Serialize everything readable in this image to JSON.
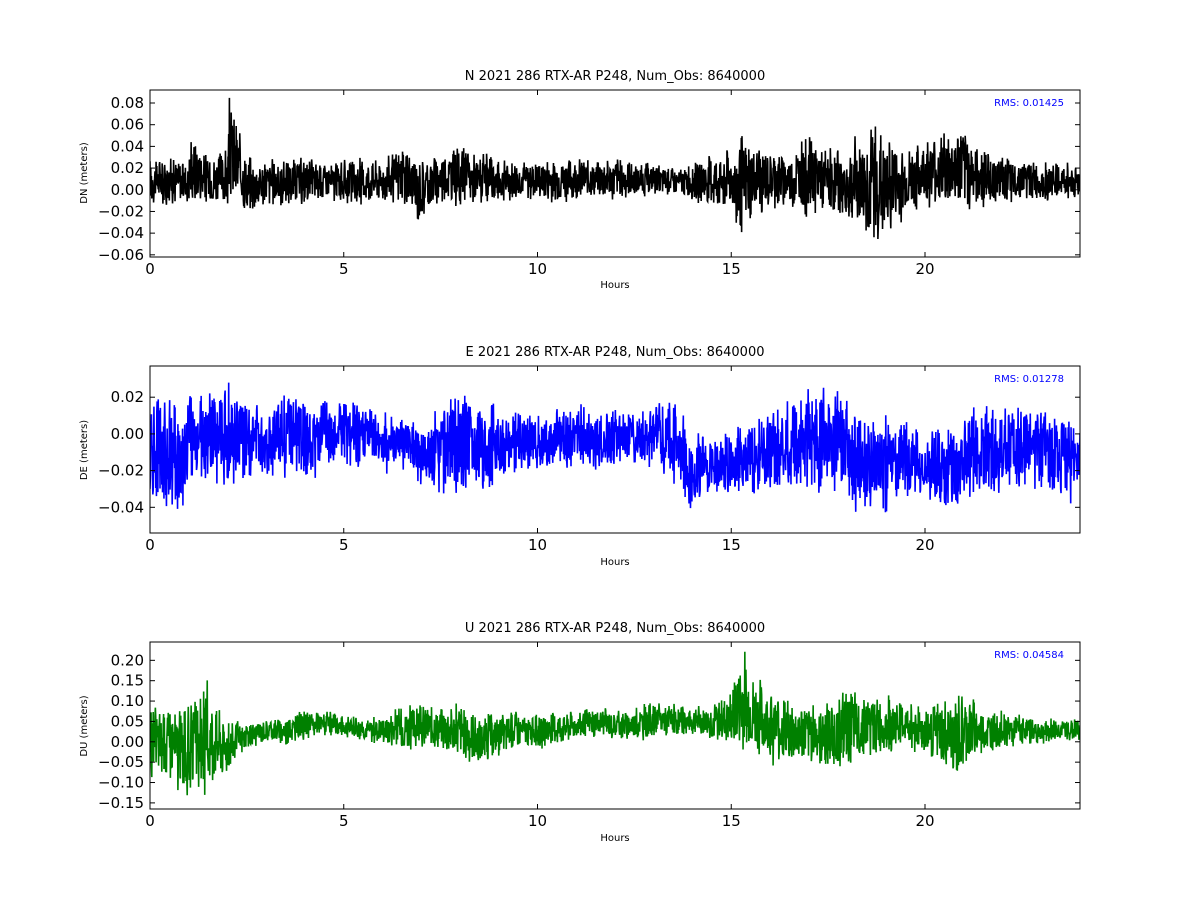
{
  "chart_data": [
    {
      "type": "line",
      "title": "N 2021 286 RTX-AR  P248, Num_Obs: 8640000",
      "xlabel": "Hours",
      "ylabel": "DN (meters)",
      "xlim": [
        0,
        24
      ],
      "ylim": [
        -0.062,
        0.092
      ],
      "xticks": [
        0,
        5,
        10,
        15,
        20
      ],
      "xtick_labels": [
        "0",
        "5",
        "10",
        "15",
        "20"
      ],
      "yticks": [
        -0.06,
        -0.04,
        -0.02,
        0.0,
        0.02,
        0.04,
        0.06,
        0.08
      ],
      "ytick_labels": [
        "−0.06",
        "−0.04",
        "−0.02",
        "0.00",
        "0.02",
        "0.04",
        "0.06",
        "0.08"
      ],
      "annotation": "RMS:  0.01425",
      "annotation_color": "#0000ff",
      "line_color": "#000000",
      "grid": false,
      "series": [
        {
          "x": [
            0,
            0.5,
            1,
            1.05,
            1.5,
            2,
            2.05,
            2.5,
            3,
            3.5,
            4,
            4.5,
            5,
            5.5,
            6,
            6.5,
            6.9,
            7.5,
            8,
            8.5,
            9,
            9.5,
            10,
            10.5,
            11,
            11.5,
            12,
            12.5,
            13,
            13.5,
            14,
            14.5,
            15,
            15.25,
            15.5,
            16,
            16.5,
            17,
            17.5,
            18,
            18.5,
            18.75,
            19,
            19.5,
            20,
            20.5,
            21,
            21.5,
            22,
            22.5,
            23,
            23.5,
            24
          ],
          "upper": [
            0.032,
            0.034,
            0.03,
            0.058,
            0.036,
            0.04,
            0.09,
            0.035,
            0.032,
            0.03,
            0.032,
            0.03,
            0.028,
            0.032,
            0.03,
            0.044,
            0.032,
            0.038,
            0.044,
            0.036,
            0.03,
            0.03,
            0.03,
            0.032,
            0.032,
            0.03,
            0.032,
            0.028,
            0.024,
            0.02,
            0.028,
            0.034,
            0.04,
            0.054,
            0.048,
            0.04,
            0.038,
            0.056,
            0.04,
            0.046,
            0.06,
            0.072,
            0.054,
            0.04,
            0.05,
            0.058,
            0.062,
            0.04,
            0.032,
            0.03,
            0.028,
            0.028,
            0.028
          ],
          "lower": [
            -0.014,
            -0.016,
            -0.014,
            -0.018,
            -0.018,
            -0.018,
            -0.02,
            -0.026,
            -0.018,
            -0.016,
            -0.016,
            -0.014,
            -0.014,
            -0.016,
            -0.012,
            -0.018,
            -0.034,
            -0.014,
            -0.016,
            -0.018,
            -0.014,
            -0.01,
            -0.012,
            -0.012,
            -0.012,
            -0.01,
            -0.012,
            -0.01,
            -0.006,
            -0.006,
            -0.012,
            -0.018,
            -0.022,
            -0.056,
            -0.03,
            -0.02,
            -0.02,
            -0.028,
            -0.024,
            -0.036,
            -0.05,
            -0.062,
            -0.05,
            -0.028,
            -0.018,
            -0.024,
            -0.024,
            -0.018,
            -0.014,
            -0.012,
            -0.012,
            -0.012,
            -0.012
          ]
        }
      ]
    },
    {
      "type": "line",
      "title": "E 2021 286 RTX-AR  P248, Num_Obs: 8640000",
      "xlabel": "Hours",
      "ylabel": "DE (meters)",
      "xlim": [
        0,
        24
      ],
      "ylim": [
        -0.054,
        0.037
      ],
      "xticks": [
        0,
        5,
        10,
        15,
        20
      ],
      "xtick_labels": [
        "0",
        "5",
        "10",
        "15",
        "20"
      ],
      "yticks": [
        -0.04,
        -0.02,
        0.0,
        0.02
      ],
      "ytick_labels": [
        "−0.04",
        "−0.02",
        "0.00",
        "0.02"
      ],
      "annotation": "RMS:  0.01278",
      "annotation_color": "#0000ff",
      "line_color": "#0000ff",
      "grid": false,
      "series": [
        {
          "x": [
            0,
            0.5,
            0.6,
            1,
            1.5,
            2,
            2.5,
            3,
            3.5,
            4,
            4.5,
            5,
            5.5,
            6,
            6.5,
            7,
            7.5,
            8,
            8.5,
            9,
            9.5,
            10,
            10.5,
            11,
            11.5,
            12,
            12.5,
            13,
            13.5,
            14,
            14.5,
            15,
            15.5,
            16,
            16.5,
            17,
            17.2,
            17.5,
            18,
            18.5,
            19,
            19.5,
            20,
            20.5,
            20.8,
            21,
            21.5,
            22,
            22.5,
            23,
            23.5,
            24
          ],
          "upper": [
            0.022,
            0.024,
            0.02,
            0.028,
            0.024,
            0.032,
            0.02,
            0.018,
            0.026,
            0.022,
            0.02,
            0.022,
            0.018,
            0.014,
            0.012,
            0.006,
            0.018,
            0.03,
            0.02,
            0.018,
            0.014,
            0.012,
            0.014,
            0.018,
            0.014,
            0.016,
            0.014,
            0.018,
            0.022,
            0.002,
            0.002,
            0.004,
            0.008,
            0.014,
            0.022,
            0.032,
            0.037,
            0.028,
            0.02,
            0.014,
            0.012,
            0.01,
            0.0,
            0.006,
            0.01,
            0.012,
            0.018,
            0.02,
            0.018,
            0.018,
            0.012,
            0.008
          ],
          "lower": [
            -0.044,
            -0.046,
            -0.054,
            -0.036,
            -0.03,
            -0.032,
            -0.026,
            -0.024,
            -0.026,
            -0.028,
            -0.024,
            -0.02,
            -0.02,
            -0.024,
            -0.02,
            -0.03,
            -0.04,
            -0.034,
            -0.036,
            -0.028,
            -0.024,
            -0.022,
            -0.022,
            -0.02,
            -0.022,
            -0.02,
            -0.02,
            -0.022,
            -0.03,
            -0.044,
            -0.036,
            -0.034,
            -0.036,
            -0.034,
            -0.036,
            -0.04,
            -0.044,
            -0.038,
            -0.04,
            -0.048,
            -0.044,
            -0.036,
            -0.036,
            -0.046,
            -0.05,
            -0.04,
            -0.036,
            -0.034,
            -0.034,
            -0.032,
            -0.034,
            -0.044
          ]
        }
      ]
    },
    {
      "type": "line",
      "title": "U 2021 286 RTX-AR  P248, Num_Obs: 8640000",
      "xlabel": "Hours",
      "ylabel": "DU (meters)",
      "xlim": [
        0,
        24
      ],
      "ylim": [
        -0.165,
        0.245
      ],
      "xticks": [
        0,
        5,
        10,
        15,
        20
      ],
      "xtick_labels": [
        "0",
        "5",
        "10",
        "15",
        "20"
      ],
      "yticks": [
        -0.15,
        -0.1,
        -0.05,
        0.0,
        0.05,
        0.1,
        0.15,
        0.2
      ],
      "ytick_labels": [
        "−0.15",
        "−0.10",
        "−0.05",
        "0.00",
        "0.05",
        "0.10",
        "0.15",
        "0.20"
      ],
      "annotation": "RMS:  0.04584",
      "annotation_color": "#0000ff",
      "line_color": "#008000",
      "grid": false,
      "series": [
        {
          "x": [
            0,
            0.5,
            1,
            1.5,
            2,
            2.5,
            3,
            3.5,
            4,
            4.5,
            5,
            5.5,
            6,
            6.5,
            7,
            7.5,
            8,
            8.5,
            9,
            9.5,
            10,
            10.5,
            11,
            11.5,
            12,
            12.5,
            13,
            13.5,
            14,
            14.5,
            15,
            15.3,
            15.5,
            16,
            16.5,
            17,
            17.5,
            18,
            18.5,
            19,
            19.5,
            20,
            20.5,
            20.8,
            21,
            21.5,
            22,
            22.5,
            23,
            23.5,
            24
          ],
          "upper": [
            0.1,
            0.12,
            0.1,
            0.16,
            0.06,
            0.05,
            0.06,
            0.07,
            0.08,
            0.08,
            0.07,
            0.06,
            0.07,
            0.09,
            0.1,
            0.1,
            0.1,
            0.08,
            0.07,
            0.08,
            0.07,
            0.08,
            0.08,
            0.09,
            0.08,
            0.09,
            0.1,
            0.1,
            0.09,
            0.1,
            0.13,
            0.245,
            0.18,
            0.14,
            0.12,
            0.1,
            0.1,
            0.14,
            0.13,
            0.12,
            0.11,
            0.1,
            0.11,
            0.12,
            0.14,
            0.08,
            0.08,
            0.07,
            0.06,
            0.06,
            0.06
          ],
          "lower": [
            -0.09,
            -0.11,
            -0.165,
            -0.13,
            -0.08,
            -0.02,
            0.0,
            -0.01,
            0.0,
            0.01,
            0.01,
            0.0,
            -0.01,
            -0.02,
            -0.02,
            -0.03,
            -0.05,
            -0.07,
            -0.04,
            -0.02,
            -0.02,
            -0.01,
            0.0,
            0.01,
            0.0,
            0.0,
            0.0,
            0.01,
            0.01,
            0.0,
            -0.02,
            -0.06,
            -0.04,
            -0.06,
            -0.07,
            -0.06,
            -0.08,
            -0.07,
            -0.05,
            -0.03,
            -0.02,
            -0.04,
            -0.08,
            -0.11,
            -0.09,
            -0.04,
            -0.02,
            -0.01,
            -0.01,
            0.0,
            -0.01
          ]
        }
      ]
    }
  ]
}
